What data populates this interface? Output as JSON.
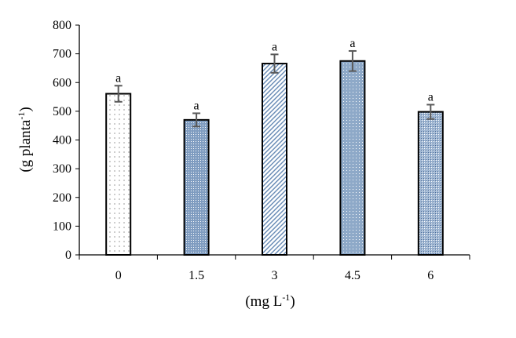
{
  "chart_data": {
    "type": "bar",
    "categories": [
      "0",
      "1.5",
      "3",
      "4.5",
      "6"
    ],
    "values": [
      561,
      470,
      666,
      675,
      498
    ],
    "errors": [
      28,
      23,
      32,
      35,
      25
    ],
    "letters": [
      "a",
      "a",
      "a",
      "a",
      "a"
    ],
    "title": "",
    "xlabel": "(mg L",
    "xlabel_sup": "-1",
    "xlabel_end": ")",
    "ylabel": "(g planta",
    "ylabel_sup": "-1",
    "ylabel_end": ")",
    "ylim": [
      0,
      800
    ],
    "yticks": [
      0,
      100,
      200,
      300,
      400,
      500,
      600,
      700,
      800
    ],
    "grid": false,
    "patterns": [
      "sparse-dots",
      "dense-crosshatch",
      "diagonal-hatch",
      "dotted-crosshatch",
      "crosshatch"
    ],
    "colors": {
      "bar_fill": "#8ea9c8",
      "bar_edge": "#000000",
      "error_bar": "#595959"
    }
  }
}
